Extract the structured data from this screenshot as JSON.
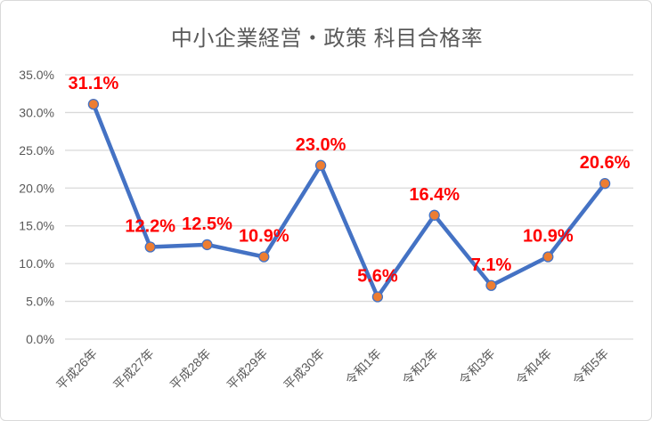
{
  "chart_data": {
    "type": "line",
    "title": "中小企業経営・政策 科目合格率",
    "categories": [
      "平成26年",
      "平成27年",
      "平成28年",
      "平成29年",
      "平成30年",
      "令和1年",
      "令和2年",
      "令和3年",
      "令和4年",
      "令和5年"
    ],
    "series": [
      {
        "name": "科目合格率",
        "values": [
          31.1,
          12.2,
          12.5,
          10.9,
          23.0,
          5.6,
          16.4,
          7.1,
          10.9,
          20.6
        ],
        "labels": [
          "31.1%",
          "12.2%",
          "12.5%",
          "10.9%",
          "23.0%",
          "5.6%",
          "16.4%",
          "7.1%",
          "10.9%",
          "20.6%"
        ]
      }
    ],
    "xlabel": "",
    "ylabel": "",
    "ylim": [
      0,
      35
    ],
    "ytick_step": 5,
    "y_ticks": [
      "0.0%",
      "5.0%",
      "10.0%",
      "15.0%",
      "20.0%",
      "25.0%",
      "30.0%",
      "35.0%"
    ],
    "grid": "horizontal",
    "legend": "none",
    "colors": {
      "line": "#4472C4",
      "marker_fill": "#ED7D31",
      "marker_stroke": "#4472C4",
      "data_label": "#FF0000",
      "title_text": "#595959",
      "axis_text": "#595959",
      "gridline": "#D9D9D9",
      "frame_border": "#D9D9D9",
      "background": "#FFFFFF"
    }
  }
}
